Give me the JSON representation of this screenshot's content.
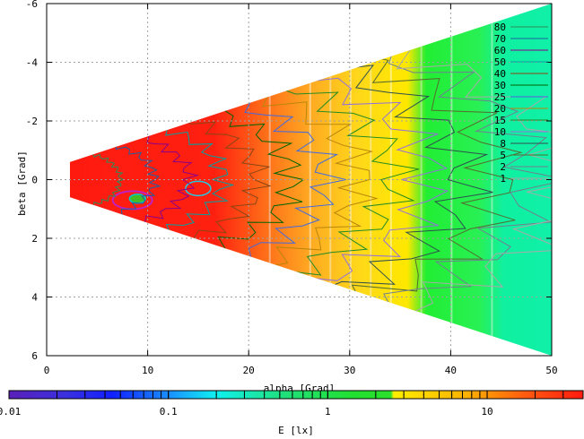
{
  "chart_data": {
    "type": "heatmap",
    "title": "",
    "xlabel": "alpha [Grad]",
    "ylabel": "beta [Grad]",
    "xlim": [
      0,
      50
    ],
    "ylim": [
      6,
      -6
    ],
    "y_inverted": true,
    "grid": true,
    "x_ticks": [
      "0",
      "10",
      "20",
      "30",
      "40",
      "50"
    ],
    "y_ticks": [
      "-6",
      "-4",
      "-2",
      "0",
      "2",
      "4",
      "6"
    ],
    "x_tick_values": [
      0,
      10,
      20,
      30,
      40,
      50
    ],
    "y_tick_values": [
      -6,
      -4,
      -2,
      0,
      2,
      4,
      6
    ],
    "data_region": {
      "shape": "wedge",
      "apex": [
        2.3,
        0
      ],
      "corners": [
        [
          50,
          -6
        ],
        [
          50,
          6
        ]
      ],
      "description_values": "illuminance field E over alpha/beta, high (red) near apex, decreasing with alpha"
    },
    "bands": [
      {
        "x_from": 2.3,
        "x_to": 22,
        "level": "red-orange"
      },
      {
        "x_from": 22,
        "x_to": 30,
        "level": "orange-yellow"
      },
      {
        "x_from": 30,
        "x_to": 40,
        "level": "yellow-green"
      },
      {
        "x_from": 40,
        "x_to": 50,
        "level": "green-cyan"
      }
    ],
    "contour_levels": [
      "80",
      "70",
      "60",
      "50",
      "40",
      "30",
      "25",
      "20",
      "15",
      "10",
      "8",
      "5",
      "2",
      "1"
    ],
    "contour_colors": [
      "#2e8b57",
      "#1e5fa0",
      "#8b008b",
      "#00a0a0",
      "#8b4513",
      "#006400",
      "#4169e1",
      "#b8860b",
      "#228b22",
      "#9370db",
      "#2f4f4f",
      "#556b2f",
      "#708090",
      "#a9a9a9"
    ],
    "colorbar": {
      "label": "E [lx]",
      "scale": "log",
      "range": [
        0.01,
        40
      ],
      "tick_labels": [
        "0.01",
        "0.1",
        "1",
        "10"
      ],
      "tick_values": [
        0.01,
        0.1,
        1,
        10
      ]
    }
  }
}
